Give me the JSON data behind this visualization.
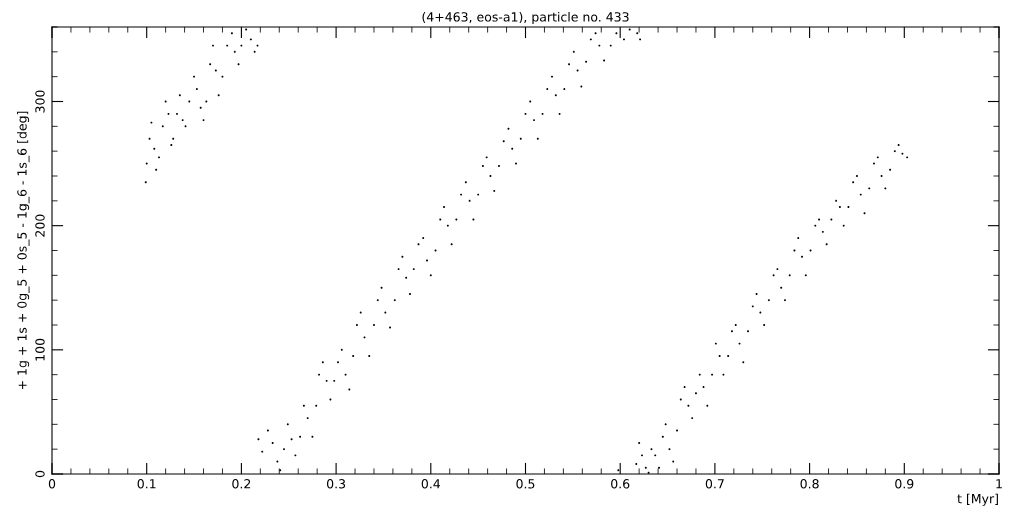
{
  "chart_data": {
    "type": "scatter",
    "title": "(4+463, eos-a1), particle no. 433",
    "xlabel": "t [Myr]",
    "ylabel": "+ 1g + 1s + 0g_5 + 0s_5 - 1g_6 - 1s_6 [deg]",
    "xlim": [
      0,
      1
    ],
    "xticks": [
      0,
      0.1,
      0.2,
      0.3,
      0.4,
      0.5,
      0.6,
      0.7,
      0.8,
      0.9,
      1
    ],
    "ylim": [
      0,
      360
    ],
    "yticks": [
      0,
      100,
      200,
      300
    ],
    "grid": false,
    "legend": false,
    "series": [
      {
        "color": "#000000",
        "x": [
          0.099,
          0.1,
          0.103,
          0.105,
          0.108,
          0.11,
          0.113,
          0.117,
          0.12,
          0.123,
          0.126,
          0.128,
          0.132,
          0.135,
          0.138,
          0.141,
          0.145,
          0.15,
          0.153,
          0.157,
          0.16,
          0.163,
          0.167,
          0.17,
          0.173,
          0.176,
          0.18,
          0.185,
          0.19,
          0.193,
          0.197,
          0.2,
          0.205,
          0.21,
          0.214,
          0.217,
          0.218,
          0.222,
          0.228,
          0.233,
          0.238,
          0.241,
          0.245,
          0.249,
          0.253,
          0.257,
          0.262,
          0.266,
          0.27,
          0.275,
          0.279,
          0.282,
          0.286,
          0.29,
          0.294,
          0.298,
          0.302,
          0.306,
          0.31,
          0.314,
          0.318,
          0.322,
          0.326,
          0.33,
          0.335,
          0.34,
          0.344,
          0.348,
          0.352,
          0.357,
          0.362,
          0.366,
          0.37,
          0.374,
          0.378,
          0.382,
          0.387,
          0.392,
          0.396,
          0.4,
          0.405,
          0.41,
          0.414,
          0.418,
          0.422,
          0.427,
          0.432,
          0.437,
          0.441,
          0.445,
          0.45,
          0.455,
          0.459,
          0.463,
          0.467,
          0.472,
          0.477,
          0.482,
          0.486,
          0.49,
          0.495,
          0.5,
          0.505,
          0.509,
          0.513,
          0.518,
          0.523,
          0.528,
          0.532,
          0.536,
          0.541,
          0.546,
          0.551,
          0.555,
          0.559,
          0.564,
          0.569,
          0.574,
          0.578,
          0.583,
          0.59,
          0.596,
          0.604,
          0.61,
          0.618,
          0.621,
          0.598,
          0.617,
          0.62,
          0.623,
          0.627,
          0.63,
          0.633,
          0.637,
          0.641,
          0.645,
          0.648,
          0.652,
          0.656,
          0.66,
          0.664,
          0.668,
          0.672,
          0.676,
          0.68,
          0.684,
          0.688,
          0.692,
          0.697,
          0.701,
          0.705,
          0.709,
          0.714,
          0.718,
          0.722,
          0.726,
          0.73,
          0.735,
          0.74,
          0.744,
          0.748,
          0.752,
          0.757,
          0.762,
          0.766,
          0.77,
          0.774,
          0.779,
          0.784,
          0.788,
          0.792,
          0.796,
          0.801,
          0.806,
          0.81,
          0.814,
          0.818,
          0.823,
          0.828,
          0.832,
          0.836,
          0.841,
          0.846,
          0.85,
          0.854,
          0.858,
          0.863,
          0.868,
          0.872,
          0.876,
          0.88,
          0.885,
          0.89,
          0.894,
          0.898,
          0.903
        ],
        "values": [
          235,
          250,
          270,
          283,
          262,
          245,
          255,
          280,
          300,
          290,
          265,
          270,
          290,
          305,
          285,
          280,
          300,
          320,
          310,
          295,
          285,
          300,
          330,
          345,
          325,
          305,
          320,
          345,
          355,
          340,
          330,
          345,
          358,
          350,
          340,
          345,
          28,
          18,
          35,
          25,
          10,
          3,
          20,
          40,
          28,
          15,
          30,
          55,
          45,
          30,
          55,
          80,
          90,
          75,
          60,
          75,
          90,
          100,
          80,
          68,
          95,
          120,
          130,
          110,
          95,
          120,
          140,
          150,
          130,
          118,
          140,
          165,
          175,
          158,
          145,
          165,
          185,
          190,
          172,
          160,
          180,
          205,
          215,
          200,
          185,
          205,
          225,
          235,
          220,
          205,
          225,
          248,
          255,
          240,
          228,
          248,
          268,
          278,
          262,
          250,
          270,
          290,
          300,
          285,
          270,
          290,
          310,
          320,
          305,
          290,
          310,
          330,
          340,
          325,
          312,
          332,
          350,
          355,
          345,
          333,
          345,
          355,
          350,
          358,
          355,
          350,
          3,
          8,
          25,
          15,
          5,
          1,
          20,
          15,
          5,
          30,
          40,
          20,
          10,
          35,
          60,
          70,
          55,
          45,
          65,
          80,
          70,
          55,
          80,
          105,
          95,
          80,
          95,
          115,
          120,
          105,
          90,
          115,
          135,
          145,
          130,
          120,
          140,
          160,
          165,
          150,
          140,
          160,
          180,
          190,
          175,
          160,
          180,
          200,
          205,
          195,
          185,
          205,
          220,
          215,
          200,
          215,
          235,
          240,
          225,
          210,
          230,
          250,
          255,
          240,
          230,
          245,
          260,
          265,
          258,
          255
        ]
      }
    ]
  }
}
